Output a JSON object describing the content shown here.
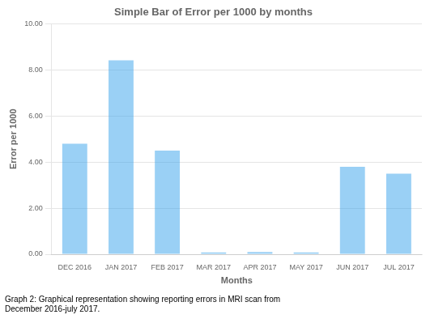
{
  "chart_data": {
    "type": "bar",
    "title": "Simple Bar of Error per 1000 by months",
    "xlabel": "Months",
    "ylabel": "Error per 1000",
    "categories": [
      "DEC 2016",
      "JAN 2017",
      "FEB 2017",
      "MAR 2017",
      "APR 2017",
      "MAY 2017",
      "JUN 2017",
      "JUL 2017"
    ],
    "values": [
      4.8,
      8.42,
      4.5,
      0.08,
      0.1,
      0.08,
      3.8,
      3.5
    ],
    "ylim": [
      0,
      10.0
    ],
    "yticks": [
      {
        "value": 0,
        "label": "0.00"
      },
      {
        "value": 2,
        "label": "2.00"
      },
      {
        "value": 4,
        "label": "4.00"
      },
      {
        "value": 6,
        "label": "6.00"
      },
      {
        "value": 8,
        "label": "8.00"
      },
      {
        "value": 10,
        "label": "10.00"
      }
    ],
    "grid": true,
    "caption": "Graph 2: Graphical representation showing reporting errors in MRI scan from\nDecember 2016-july 2017."
  }
}
